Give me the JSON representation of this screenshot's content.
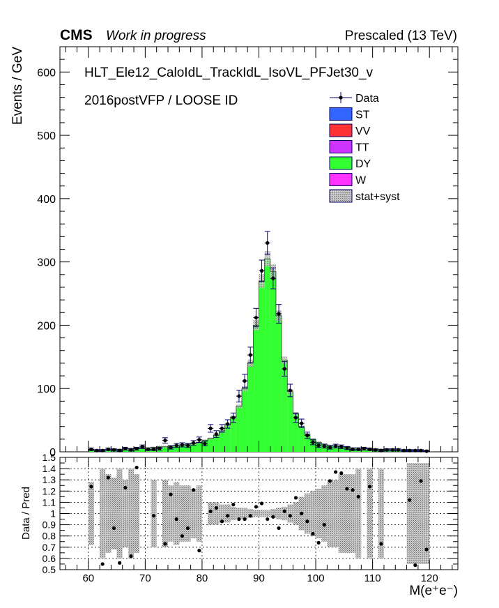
{
  "header": {
    "experiment": "CMS",
    "status": "Work in progress",
    "energy": "Prescaled (13 TeV)"
  },
  "annotations": {
    "trigger": "HLT_Ele12_CaloIdL_TrackIdL_IsoVL_PFJet30_v",
    "selection": "2016postVFP / LOOSE ID"
  },
  "legend": {
    "items": [
      {
        "label": "Data",
        "kind": "marker",
        "color": "#000000"
      },
      {
        "label": "ST",
        "kind": "fill",
        "color": "#3366ff"
      },
      {
        "label": "VV",
        "kind": "fill",
        "color": "#ff3333"
      },
      {
        "label": "TT",
        "kind": "fill",
        "color": "#cc33ff"
      },
      {
        "label": "DY",
        "kind": "fill",
        "color": "#33ff33"
      },
      {
        "label": "W",
        "kind": "fill",
        "color": "#ff33ff"
      },
      {
        "label": "stat+syst",
        "kind": "hatch",
        "color": "#888888"
      }
    ]
  },
  "chart_data": [
    {
      "type": "bar",
      "panel": "main",
      "ylabel": "Events / GeV",
      "ylim": [
        0,
        640
      ],
      "yticks": [
        0,
        100,
        200,
        300,
        400,
        500,
        600
      ],
      "xlim": [
        55,
        125
      ],
      "bin_width": 1,
      "x_start": 60,
      "series": [
        {
          "name": "DY",
          "color": "#33ff33",
          "values": [
            3,
            3,
            3,
            4,
            4,
            4,
            5,
            5,
            6,
            6,
            6,
            7,
            8,
            8,
            9,
            10,
            11,
            12,
            13,
            15,
            18,
            21,
            26,
            33,
            42,
            55,
            72,
            100,
            140,
            200,
            270,
            305,
            285,
            215,
            145,
            95,
            60,
            40,
            28,
            20,
            15,
            12,
            10,
            9,
            8,
            7,
            6,
            6,
            5,
            5,
            4,
            4,
            4,
            3,
            3,
            3,
            3,
            2,
            2,
            2
          ]
        },
        {
          "name": "Data",
          "color": "#000000",
          "values": [
            4,
            2,
            2,
            4,
            3,
            2,
            5,
            3,
            5,
            8,
            4,
            4,
            5,
            18,
            7,
            10,
            11,
            10,
            14,
            19,
            13,
            37,
            28,
            37,
            44,
            54,
            88,
            112,
            153,
            212,
            286,
            330,
            274,
            218,
            131,
            97,
            54,
            45,
            26,
            15,
            10,
            9,
            7,
            9,
            8,
            6,
            4,
            4,
            5,
            4,
            3,
            2,
            3,
            3,
            3,
            2,
            2,
            2,
            2,
            1
          ]
        }
      ]
    },
    {
      "type": "scatter",
      "panel": "ratio",
      "ylabel": "Data / Pred",
      "xlabel": "M(e⁺e⁻)",
      "xlim": [
        55,
        125
      ],
      "xticks": [
        60,
        70,
        80,
        90,
        100,
        110,
        120
      ],
      "ylim": [
        0.5,
        1.5
      ],
      "yticks": [
        0.5,
        0.6,
        0.7,
        0.8,
        0.9,
        1.0,
        1.1,
        1.2,
        1.3,
        1.4,
        1.5
      ],
      "ytick_labels": [
        "0.5",
        "0.6",
        "0.7",
        "0.8",
        "0.9",
        "1",
        "1.1",
        "1.2",
        "1.3",
        "1.4",
        "1.5"
      ],
      "x": [
        60.5,
        62.5,
        63.5,
        64.5,
        65.5,
        66.5,
        67.5,
        68.5,
        71.5,
        73.5,
        74.5,
        75.5,
        76.5,
        77.5,
        78.5,
        79.5,
        81.5,
        82.5,
        83.5,
        84.5,
        85.5,
        86.5,
        87.5,
        88.5,
        89.5,
        90.5,
        91.5,
        92.5,
        93.5,
        94.5,
        95.5,
        96.5,
        97.5,
        98.5,
        99.5,
        100.5,
        101.5,
        102.5,
        103.5,
        104.5,
        105.5,
        106.5,
        107.5,
        109.5,
        111.5,
        116.5,
        117.5,
        118.5,
        119.5
      ],
      "values": [
        1.24,
        0.55,
        1.32,
        0.87,
        0.56,
        1.23,
        0.62,
        1.41,
        0.98,
        0.73,
        1.17,
        0.95,
        0.8,
        0.87,
        1.21,
        0.67,
        1.02,
        1.05,
        0.93,
        0.98,
        1.08,
        0.95,
        0.95,
        0.98,
        1.06,
        1.09,
        0.95,
        0.97,
        0.87,
        1.02,
        0.98,
        1.14,
        1.0,
        0.93,
        0.82,
        0.74,
        0.9,
        1.29,
        1.37,
        1.36,
        1.22,
        1.21,
        1.15,
        1.24,
        0.73,
        1.12,
        0.54,
        1.29,
        0.68
      ],
      "band_halfwidth": [
        0.28,
        0.4,
        0.35,
        0.32,
        0.4,
        0.3,
        0.4,
        0.35,
        0.3,
        0.3,
        0.25,
        0.28,
        0.25,
        0.25,
        0.22,
        0.25,
        0.1,
        0.1,
        0.08,
        0.08,
        0.06,
        0.05,
        0.05,
        0.04,
        0.03,
        0.03,
        0.03,
        0.04,
        0.05,
        0.06,
        0.08,
        0.1,
        0.15,
        0.18,
        0.2,
        0.22,
        0.25,
        0.3,
        0.3,
        0.35,
        0.35,
        0.35,
        0.4,
        0.4,
        0.4,
        0.45,
        0.45,
        0.45,
        0.45
      ]
    }
  ]
}
